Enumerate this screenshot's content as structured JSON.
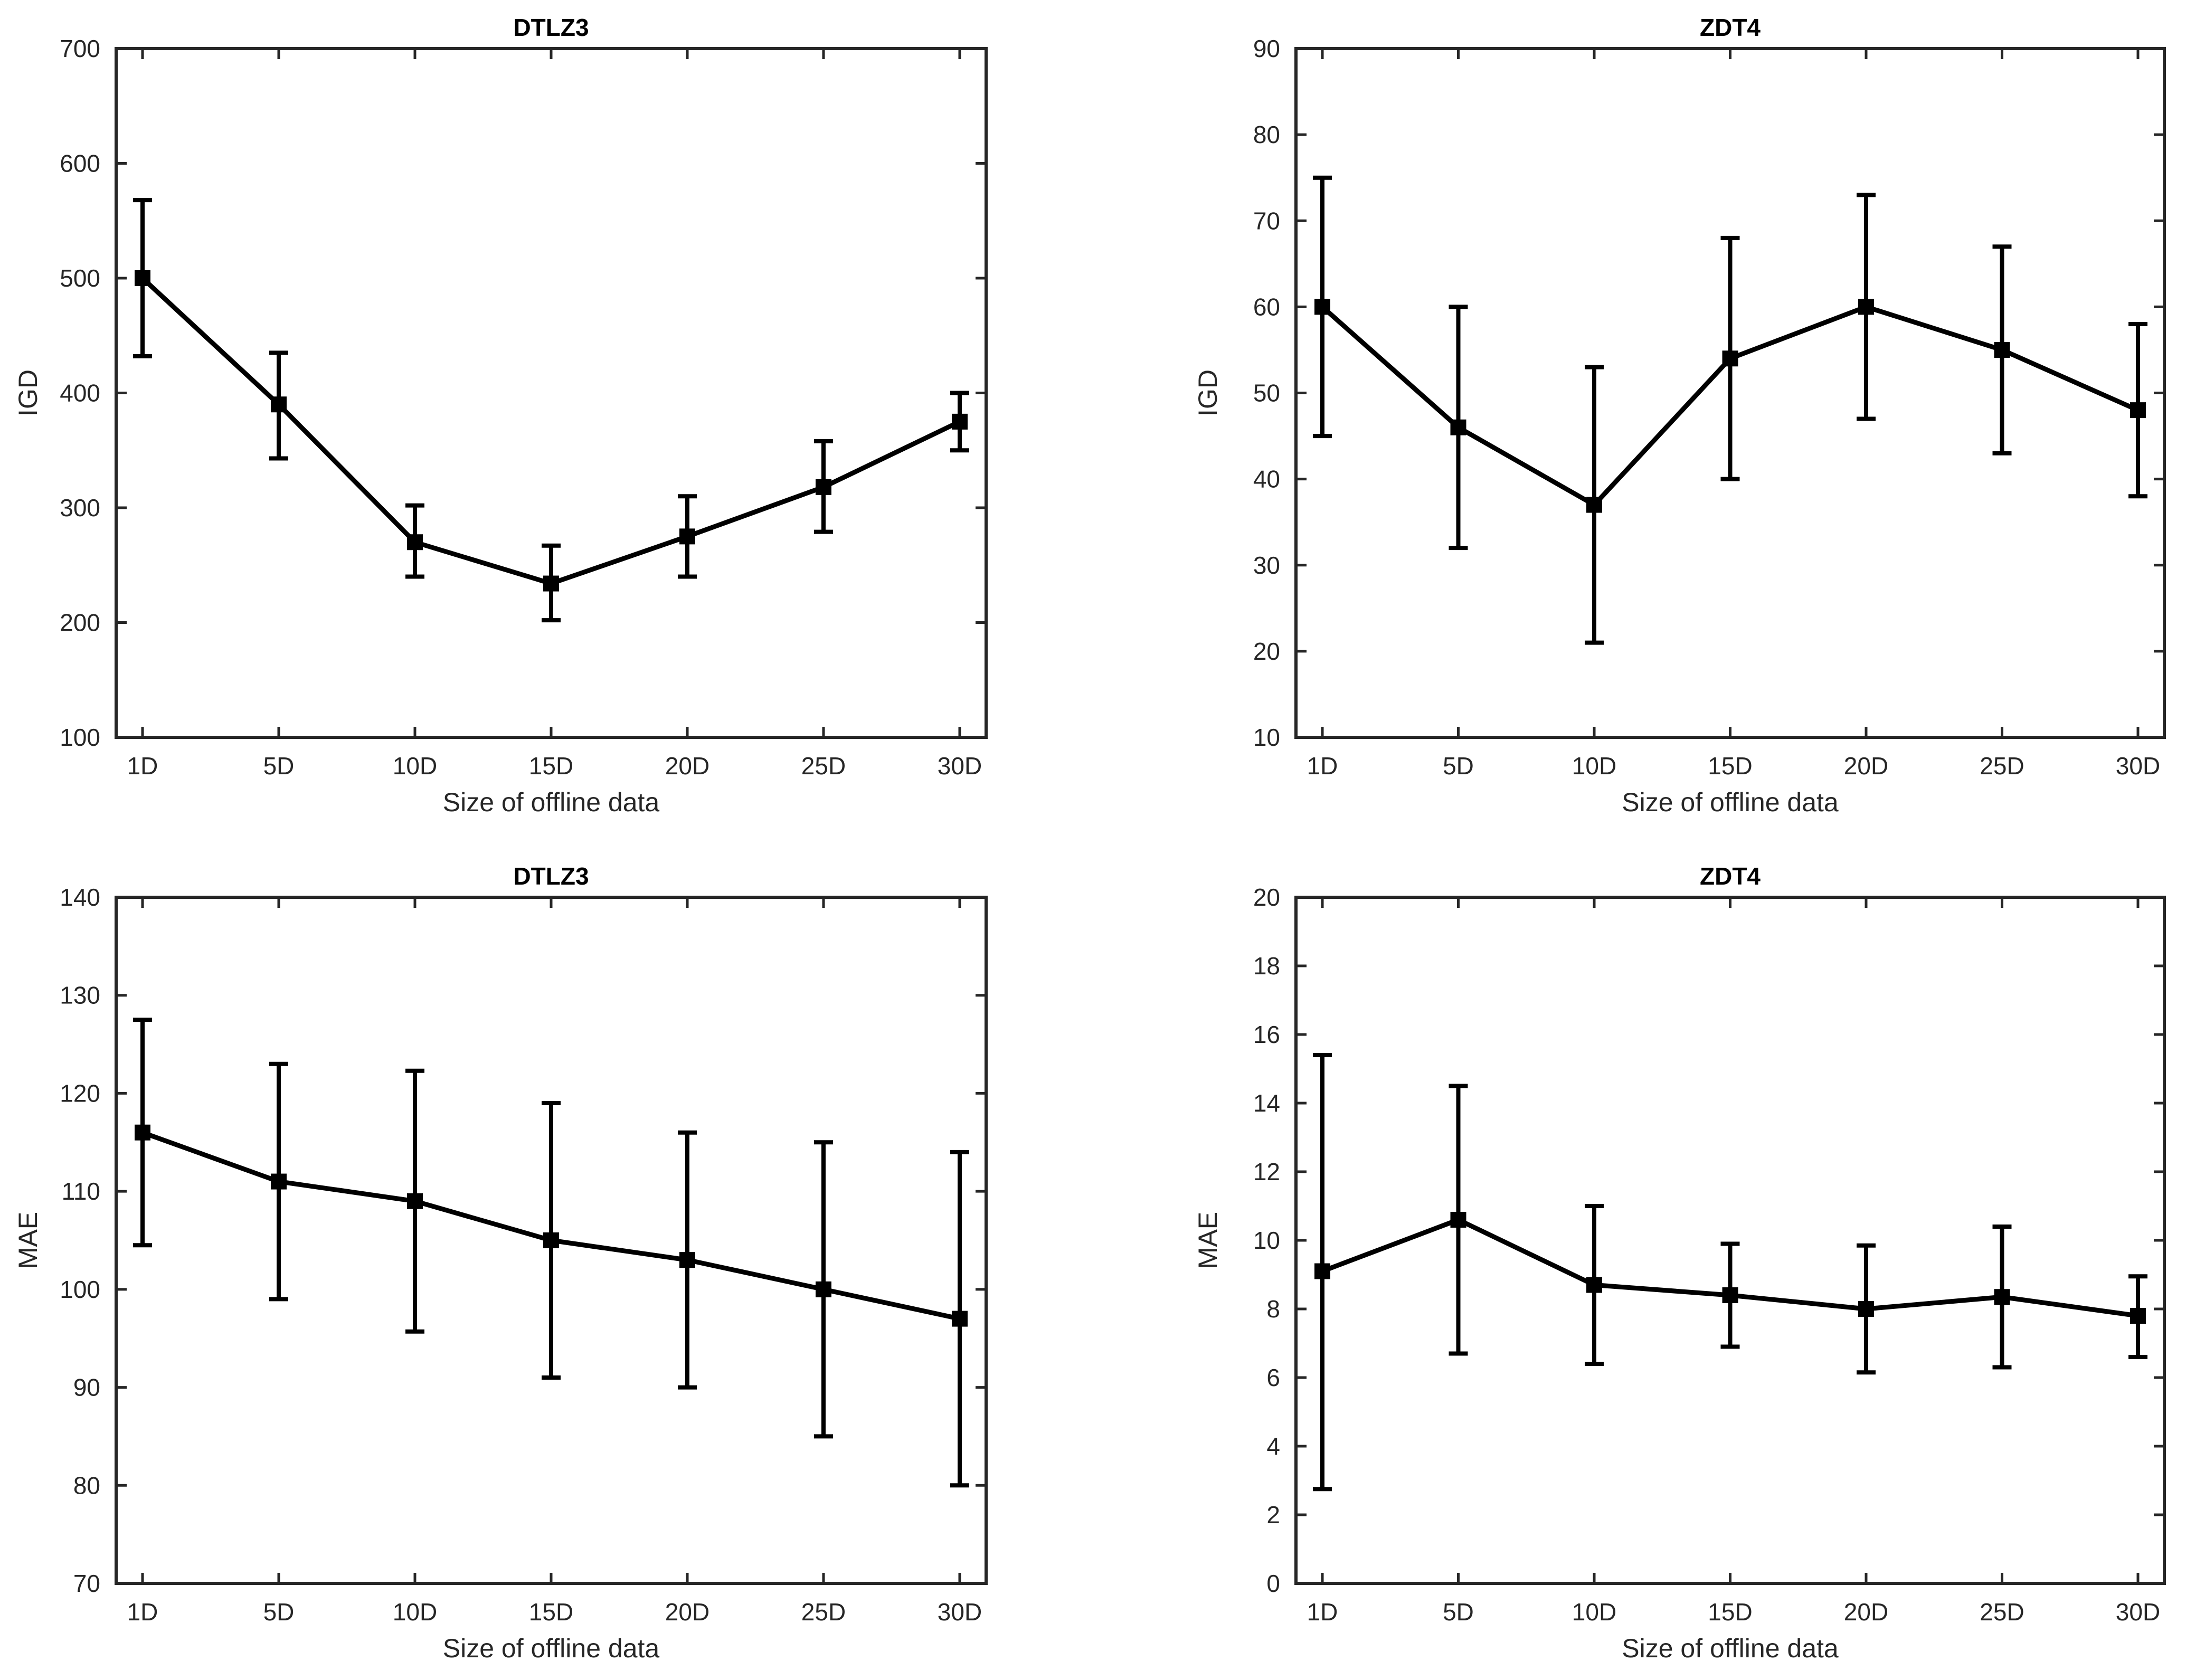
{
  "colors": {
    "line": "#000000",
    "axis": "#262626",
    "background": "#ffffff"
  },
  "chart_data": [
    {
      "type": "line",
      "title": "DTLZ3",
      "xlabel": "Size of offline data",
      "ylabel": "IGD",
      "categories": [
        "1D",
        "5D",
        "10D",
        "15D",
        "20D",
        "25D",
        "30D"
      ],
      "series": [
        {
          "values": [
            500,
            390,
            270,
            234,
            275,
            318,
            375
          ],
          "error_upper": [
            568,
            435,
            302,
            267,
            310,
            358,
            400
          ],
          "error_lower": [
            432,
            343,
            240,
            202,
            240,
            279,
            350
          ],
          "marker": "square"
        }
      ],
      "ylim": [
        100,
        700
      ],
      "yticks": [
        100,
        200,
        300,
        400,
        500,
        600,
        700
      ],
      "grid": false
    },
    {
      "type": "line",
      "title": "ZDT4",
      "xlabel": "Size of offline data",
      "ylabel": "IGD",
      "categories": [
        "1D",
        "5D",
        "10D",
        "15D",
        "20D",
        "25D",
        "30D"
      ],
      "series": [
        {
          "values": [
            60,
            46,
            37,
            54,
            60,
            55,
            48
          ],
          "error_upper": [
            75,
            60,
            53,
            68,
            73,
            67,
            58
          ],
          "error_lower": [
            45,
            32,
            21,
            40,
            47,
            43,
            38
          ],
          "marker": "square"
        }
      ],
      "ylim": [
        10,
        90
      ],
      "yticks": [
        10,
        20,
        30,
        40,
        50,
        60,
        70,
        80,
        90
      ],
      "grid": false
    },
    {
      "type": "line",
      "title": "DTLZ3",
      "xlabel": "Size of offline data",
      "ylabel": "MAE",
      "categories": [
        "1D",
        "5D",
        "10D",
        "15D",
        "20D",
        "25D",
        "30D"
      ],
      "series": [
        {
          "values": [
            116,
            111,
            109,
            105,
            103,
            100,
            97
          ],
          "error_upper": [
            127.5,
            123,
            122.3,
            119,
            116,
            115,
            114
          ],
          "error_lower": [
            104.5,
            99,
            95.7,
            91,
            90,
            85,
            80
          ],
          "marker": "square"
        }
      ],
      "ylim": [
        70,
        140
      ],
      "yticks": [
        70,
        80,
        90,
        100,
        110,
        120,
        130,
        140
      ],
      "grid": false
    },
    {
      "type": "line",
      "title": "ZDT4",
      "xlabel": "Size of offline data",
      "ylabel": "MAE",
      "categories": [
        "1D",
        "5D",
        "10D",
        "15D",
        "20D",
        "25D",
        "30D"
      ],
      "series": [
        {
          "values": [
            9.1,
            10.6,
            8.7,
            8.4,
            8.0,
            8.35,
            7.8
          ],
          "error_upper": [
            15.4,
            14.5,
            11.0,
            9.9,
            9.85,
            10.4,
            8.95
          ],
          "error_lower": [
            2.75,
            6.7,
            6.4,
            6.9,
            6.15,
            6.3,
            6.6
          ],
          "marker": "square"
        }
      ],
      "ylim": [
        0,
        20
      ],
      "yticks": [
        0,
        2,
        4,
        6,
        8,
        10,
        12,
        14,
        16,
        18,
        20
      ],
      "grid": false
    }
  ]
}
